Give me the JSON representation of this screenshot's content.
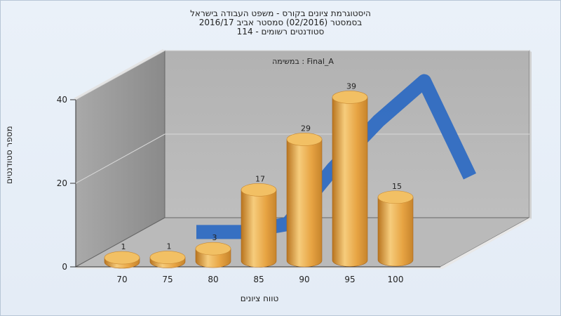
{
  "chart_data": {
    "type": "bar",
    "title": [
      "היסטוגרמת ציונים בקורס - משפט העבודה בישראל",
      "בסמסטר  (02/2016)  סמסטר אביב 2016/17",
      "סטודנטים רשומים - 114"
    ],
    "annotation": "במשימה : Final_A",
    "xlabel": "טווח ציונים",
    "ylabel": "מספר סטודנטים",
    "categories": [
      "70",
      "75",
      "80",
      "85",
      "90",
      "95",
      "100"
    ],
    "values": [
      1,
      1,
      3,
      17,
      29,
      39,
      15
    ],
    "ylim": [
      0,
      40
    ],
    "yticks": [
      "0",
      "20",
      "40"
    ],
    "grid": true,
    "colors": {
      "bar": "#e8a640",
      "bar_top": "#f2c064",
      "curve": "#2f6bc2",
      "wall": "#9a9a9a",
      "floor": "#b9b9b9"
    }
  }
}
